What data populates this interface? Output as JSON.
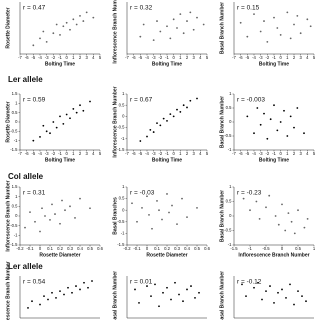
{
  "section_labels": [
    "Ler allele",
    "Col allele",
    "Ler allele"
  ],
  "chart_data": [
    {
      "type": "scatter",
      "annotation": "r = 0.47",
      "xlabel": "Bolting Time",
      "ylabel": "Rosette Diameter",
      "color": "#666",
      "xlim": [
        -7,
        5
      ],
      "ylim": [
        -1.5,
        1.5
      ],
      "xticks": [
        -7,
        -6,
        -5,
        -4,
        -3,
        -2,
        -1,
        0,
        1,
        2,
        3,
        4,
        5
      ],
      "x": [
        -5,
        -4,
        -3.5,
        -3,
        -2,
        -1.5,
        -1,
        -0.5,
        0,
        0.5,
        1,
        1.5,
        2,
        2.5,
        3,
        4
      ],
      "values": [
        -1,
        -0.6,
        -0.2,
        -0.8,
        -0.3,
        0.2,
        -0.4,
        0.1,
        0.3,
        -0.1,
        0.5,
        0.2,
        0.7,
        0.4,
        0.9,
        0.6
      ]
    },
    {
      "type": "scatter",
      "annotation": "r = 0.32",
      "xlabel": "Bolting Time",
      "ylabel": "Inflorescence Branch Number",
      "color": "#666",
      "xlim": [
        -7,
        5
      ],
      "ylim": [
        -1.5,
        1.5
      ],
      "xticks": [
        -7,
        -6,
        -5,
        -4,
        -3,
        -2,
        -1,
        0,
        1,
        2,
        3,
        4,
        5
      ],
      "x": [
        -5,
        -4.5,
        -3,
        -2.5,
        -2,
        -1,
        -0.5,
        0,
        0.5,
        1,
        1.5,
        2,
        2.5,
        3,
        3.5,
        4.5
      ],
      "values": [
        -0.5,
        0.2,
        -0.7,
        0.4,
        -0.2,
        0.1,
        -0.6,
        0.5,
        0,
        0.8,
        -0.3,
        0.4,
        0.9,
        -0.1,
        0.6,
        0.2
      ]
    },
    {
      "type": "scatter",
      "annotation": "r = 0.15",
      "xlabel": "Bolting Time",
      "ylabel": "Basal Branch Number",
      "color": "#666",
      "xlim": [
        -7,
        5
      ],
      "ylim": [
        -1.5,
        1.5
      ],
      "xticks": [
        -7,
        -6,
        -5,
        -4,
        -3,
        -2,
        -1,
        0,
        1,
        2,
        3,
        4,
        5
      ],
      "x": [
        -6,
        -5,
        -4,
        -3,
        -2.5,
        -2,
        -1,
        -0.5,
        0,
        1,
        1.5,
        2,
        2.5,
        3,
        4,
        4.5
      ],
      "values": [
        0.3,
        -0.5,
        0.8,
        -0.2,
        0.4,
        -0.8,
        0.6,
        0,
        -0.4,
        0.9,
        -0.6,
        0.2,
        0.7,
        -0.3,
        0.5,
        0.1
      ]
    },
    {
      "type": "scatter",
      "annotation": "r = 0.59",
      "xlabel": "Bolting Time",
      "ylabel": "Rosette Diameter",
      "color": "#000",
      "xlim": [
        -7,
        5
      ],
      "ylim": [
        -1.5,
        1.5
      ],
      "xticks": [
        -7,
        -6,
        -5,
        -4,
        -3,
        -2,
        -1,
        0,
        1,
        2,
        3,
        4,
        5
      ],
      "yticks": [
        -1.5,
        -1,
        -0.5,
        0,
        0.5,
        1,
        1.5
      ],
      "x": [
        -5,
        -4,
        -3.5,
        -3,
        -2.5,
        -2,
        -1.5,
        -1,
        -0.5,
        0,
        0.5,
        1,
        1.5,
        2,
        2.5,
        3.5
      ],
      "values": [
        -1,
        -0.8,
        -0.2,
        -0.5,
        -0.6,
        0,
        -0.3,
        0.3,
        -0.1,
        0.4,
        0.2,
        0.7,
        0.5,
        0.9,
        0.6,
        1.1
      ]
    },
    {
      "type": "scatter",
      "annotation": "r = 0.67",
      "xlabel": "Bolting Time",
      "ylabel": "Inflorescence Branch Number",
      "color": "#000",
      "xlim": [
        -7,
        5
      ],
      "ylim": [
        -1.5,
        1
      ],
      "xticks": [
        -7,
        -6,
        -5,
        -4,
        -3,
        -2,
        -1,
        0,
        1,
        2,
        3,
        4,
        5
      ],
      "yticks": [
        -1.5,
        -1,
        -0.5,
        0,
        0.5,
        1
      ],
      "x": [
        -5,
        -4,
        -3.5,
        -3,
        -2.5,
        -2,
        -1.5,
        -1,
        -0.5,
        0,
        0.5,
        1,
        1.5,
        2,
        2.5,
        3.5
      ],
      "values": [
        -1.1,
        -0.9,
        -0.6,
        -0.7,
        -0.3,
        -0.4,
        -0.1,
        -0.2,
        0.1,
        0,
        0.3,
        0.2,
        0.5,
        0.4,
        0.7,
        0.8
      ]
    },
    {
      "type": "scatter",
      "annotation": "r = -0.003",
      "xlabel": "Bolting Time",
      "ylabel": "Basal Branch Number",
      "color": "#000",
      "xlim": [
        -7,
        5
      ],
      "ylim": [
        -1,
        1
      ],
      "xticks": [
        -7,
        -6,
        -5,
        -4,
        -3,
        -2,
        -1,
        0,
        1,
        2,
        3,
        4,
        5
      ],
      "yticks": [
        -1,
        -0.5,
        0,
        0.5,
        1
      ],
      "x": [
        -5,
        -4,
        -3.5,
        -3,
        -2.5,
        -2,
        -1.5,
        -1,
        -0.5,
        0,
        0.5,
        1,
        1.5,
        2,
        2.5,
        3.5
      ],
      "values": [
        0.2,
        -0.4,
        0.5,
        -0.1,
        0.3,
        -0.6,
        0.1,
        0.6,
        -0.3,
        0,
        0.4,
        -0.5,
        0.2,
        -0.2,
        0.5,
        -0.4
      ]
    },
    {
      "type": "scatter",
      "annotation": "r = 0.31",
      "xlabel": "Rosette Diameter",
      "ylabel": "Inflorescence Branch Number",
      "color": "#666",
      "xlim": [
        -0.2,
        0.6
      ],
      "ylim": [
        -1.5,
        1.5
      ],
      "xticks": [
        -0.2,
        -0.1,
        0,
        0.1,
        0.2,
        0.3,
        0.4,
        0.5,
        0.6
      ],
      "yticks": [
        -1.5,
        -1,
        -0.5,
        0,
        0.5,
        1,
        1.5
      ],
      "x": [
        -0.15,
        -0.1,
        -0.05,
        0,
        0.02,
        0.05,
        0.1,
        0.12,
        0.15,
        0.2,
        0.22,
        0.25,
        0.3,
        0.35,
        0.4,
        0.5
      ],
      "values": [
        -0.6,
        0.2,
        -0.3,
        -0.8,
        0.4,
        0,
        -0.2,
        0.6,
        0.1,
        -0.4,
        0.8,
        0.3,
        0.5,
        -0.1,
        0.9,
        0.4
      ]
    },
    {
      "type": "scatter",
      "annotation": "r = -0.03",
      "xlabel": "Rosette Diameter",
      "ylabel": "Basal Branches",
      "color": "#666",
      "xlim": [
        -0.2,
        0.6
      ],
      "ylim": [
        -1.5,
        1
      ],
      "xticks": [
        -0.2,
        -0.1,
        0,
        0.1,
        0.2,
        0.3,
        0.4,
        0.5,
        0.6
      ],
      "yticks": [
        -1.5,
        -1,
        -0.5,
        0,
        0.5,
        1
      ],
      "x": [
        -0.15,
        -0.1,
        -0.05,
        0,
        0.02,
        0.05,
        0.1,
        0.12,
        0.15,
        0.2,
        0.22,
        0.25,
        0.3,
        0.35,
        0.4,
        0.5
      ],
      "values": [
        0.3,
        -0.5,
        0.1,
        0.6,
        -0.2,
        -0.8,
        0.4,
        0,
        -0.4,
        0.7,
        -0.1,
        0.2,
        -0.6,
        0.5,
        -0.3,
        0.1
      ]
    },
    {
      "type": "scatter",
      "annotation": "r = -0.23",
      "xlabel": "Inflorescence Branch Number",
      "ylabel": "Basal Branch Number",
      "color": "#666",
      "xlim": [
        -1.5,
        1
      ],
      "ylim": [
        -1,
        1
      ],
      "xticks": [
        -1.5,
        -1,
        -0.5,
        0,
        0.5,
        1
      ],
      "yticks": [
        -1,
        -0.5,
        0,
        0.5,
        1
      ],
      "x": [
        -1.2,
        -1,
        -0.8,
        -0.7,
        -0.5,
        -0.4,
        -0.2,
        -0.1,
        0,
        0.1,
        0.2,
        0.3,
        0.4,
        0.5,
        0.7,
        0.8
      ],
      "values": [
        0.6,
        0.2,
        0.5,
        -0.1,
        0.3,
        0.7,
        0,
        -0.3,
        0.4,
        -0.5,
        0.1,
        -0.2,
        -0.6,
        0.2,
        -0.4,
        -0.1
      ]
    },
    {
      "type": "scatter",
      "annotation": "r = 0.54",
      "ylabel": "Inflorescence Branch Number",
      "color": "#000",
      "xlim": [
        -1,
        1
      ],
      "ylim": [
        -1.5,
        1
      ],
      "x": [
        -0.8,
        -0.7,
        -0.5,
        -0.4,
        -0.3,
        -0.2,
        -0.1,
        0,
        0.1,
        0.2,
        0.3,
        0.4,
        0.5,
        0.6,
        0.7,
        0.8
      ],
      "values": [
        -0.9,
        -0.5,
        -0.7,
        -0.2,
        -0.4,
        0,
        -0.3,
        0.1,
        -0.1,
        0.3,
        0,
        0.4,
        0.2,
        0.6,
        0.3,
        0.7
      ]
    },
    {
      "type": "scatter",
      "annotation": "r = 0.01",
      "ylabel": "Basal Branch Number",
      "color": "#000",
      "xlim": [
        -1,
        1
      ],
      "ylim": [
        -1.5,
        1
      ],
      "x": [
        -0.8,
        -0.7,
        -0.5,
        -0.4,
        -0.3,
        -0.2,
        -0.1,
        0,
        0.1,
        0.2,
        0.3,
        0.4,
        0.5,
        0.6,
        0.7,
        0.8
      ],
      "values": [
        0.2,
        -0.6,
        0.4,
        -0.2,
        0.5,
        -0.8,
        0,
        0.3,
        -0.4,
        0.6,
        -0.1,
        -0.5,
        0.2,
        0.4,
        -0.3,
        0
      ]
    },
    {
      "type": "scatter",
      "annotation": "r = -0.12",
      "ylabel": "Basal Branch Number",
      "color": "#000",
      "xlim": [
        -1,
        1
      ],
      "ylim": [
        -1.5,
        1
      ],
      "x": [
        -0.8,
        -0.7,
        -0.5,
        -0.4,
        -0.3,
        -0.2,
        -0.1,
        0,
        0.1,
        0.2,
        0.3,
        0.4,
        0.5,
        0.6,
        0.7,
        0.8
      ],
      "values": [
        0.5,
        -0.2,
        0.3,
        0.6,
        -0.4,
        0.1,
        0.4,
        -0.6,
        0,
        0.2,
        -0.3,
        0.5,
        -0.7,
        0.1,
        -0.2,
        -0.5
      ]
    }
  ]
}
